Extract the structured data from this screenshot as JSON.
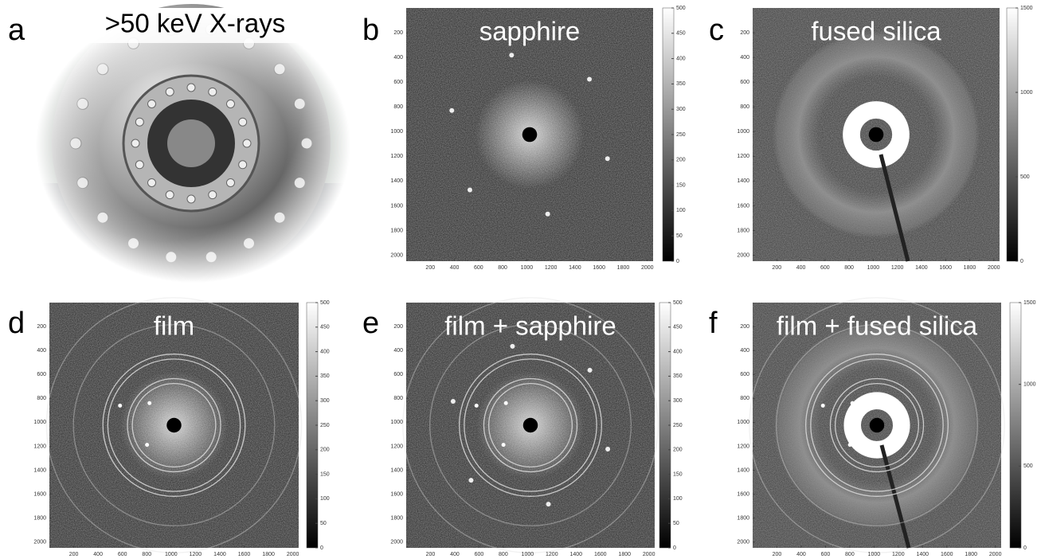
{
  "panels": [
    {
      "letter": "a",
      "title": ">50 keV X-rays"
    },
    {
      "letter": "b",
      "title": "sapphire",
      "image": {
        "xlim": [
          0,
          2048
        ],
        "ylim": [
          0,
          2048
        ],
        "xticks": [
          200,
          400,
          600,
          800,
          1000,
          1200,
          1400,
          1600,
          1800,
          2000
        ],
        "yticks": [
          200,
          400,
          600,
          800,
          1000,
          1200,
          1400,
          1600,
          1800,
          2000
        ],
        "colorbar": {
          "lim": [
            0,
            500
          ],
          "ticks": [
            0,
            50,
            100,
            150,
            200,
            250,
            300,
            350,
            400,
            450,
            500
          ]
        }
      }
    },
    {
      "letter": "c",
      "title": "fused silica",
      "image": {
        "xlim": [
          0,
          2048
        ],
        "ylim": [
          0,
          2048
        ],
        "xticks": [
          200,
          400,
          600,
          800,
          1000,
          1200,
          1400,
          1600,
          1800,
          2000
        ],
        "yticks": [
          200,
          400,
          600,
          800,
          1000,
          1200,
          1400,
          1600,
          1800,
          2000
        ],
        "colorbar": {
          "lim": [
            0,
            1500
          ],
          "ticks": [
            0,
            500,
            1000,
            1500
          ]
        }
      }
    },
    {
      "letter": "d",
      "title": "film",
      "image": {
        "xlim": [
          0,
          2048
        ],
        "ylim": [
          0,
          2048
        ],
        "xticks": [
          200,
          400,
          600,
          800,
          1000,
          1200,
          1400,
          1600,
          1800,
          2000
        ],
        "yticks": [
          200,
          400,
          600,
          800,
          1000,
          1200,
          1400,
          1600,
          1800,
          2000
        ],
        "colorbar": {
          "lim": [
            0,
            500
          ],
          "ticks": [
            0,
            50,
            100,
            150,
            200,
            250,
            300,
            350,
            400,
            450,
            500
          ]
        }
      }
    },
    {
      "letter": "e",
      "title": "film + sapphire",
      "image": {
        "xlim": [
          0,
          2048
        ],
        "ylim": [
          0,
          2048
        ],
        "xticks": [
          200,
          400,
          600,
          800,
          1000,
          1200,
          1400,
          1600,
          1800,
          2000
        ],
        "yticks": [
          200,
          400,
          600,
          800,
          1000,
          1200,
          1400,
          1600,
          1800,
          2000
        ],
        "colorbar": {
          "lim": [
            0,
            500
          ],
          "ticks": [
            0,
            50,
            100,
            150,
            200,
            250,
            300,
            350,
            400,
            450,
            500
          ]
        }
      }
    },
    {
      "letter": "f",
      "title": "film + fused silica",
      "image": {
        "xlim": [
          0,
          2048
        ],
        "ylim": [
          0,
          2048
        ],
        "xticks": [
          200,
          400,
          600,
          800,
          1000,
          1200,
          1400,
          1600,
          1800,
          2000
        ],
        "yticks": [
          200,
          400,
          600,
          800,
          1000,
          1200,
          1400,
          1600,
          1800,
          2000
        ],
        "colorbar": {
          "lim": [
            0,
            1500
          ],
          "ticks": [
            0,
            500,
            1000,
            1500
          ]
        }
      }
    }
  ]
}
